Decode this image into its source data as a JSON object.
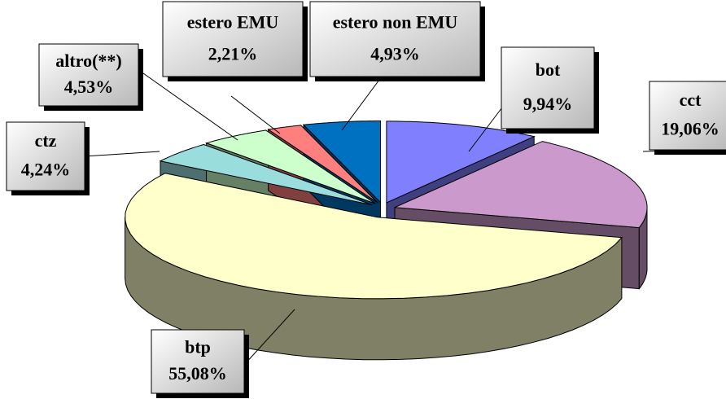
{
  "chart_data": {
    "type": "pie",
    "categories": [
      "bot",
      "cct",
      "btp",
      "ctz",
      "altro(**)",
      "estero EMU",
      "estero non EMU"
    ],
    "values": [
      9.94,
      19.06,
      55.08,
      4.24,
      4.53,
      2.21,
      4.93
    ],
    "value_labels": [
      "9,94%",
      "19,06%",
      "55,08%",
      "4,24%",
      "4,53%",
      "2,21%",
      "4,93%"
    ],
    "colors": [
      "#8080ff",
      "#cc99cc",
      "#ffffcc",
      "#99dddd",
      "#ccffcc",
      "#ff7f7f",
      "#0070c0"
    ]
  }
}
